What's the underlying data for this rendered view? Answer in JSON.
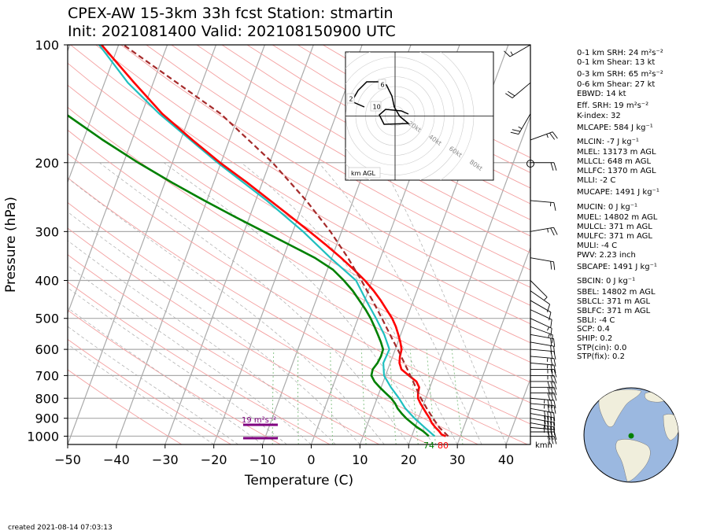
{
  "title": {
    "line1": "CPEX-AW 15-3km  33h fcst  Station: stmartin",
    "line2": "Init: 2021081400  Valid: 202108150900 UTC"
  },
  "axes": {
    "xlabel": "Temperature (C)",
    "ylabel": "Pressure (hPa)",
    "x_ticks": [
      "−50",
      "−40",
      "−30",
      "−20",
      "−10",
      "0",
      "10",
      "20",
      "30",
      "40"
    ],
    "y_ticks": [
      "100",
      "200",
      "300",
      "400",
      "500",
      "600",
      "700",
      "800",
      "900",
      "1000"
    ]
  },
  "footer": {
    "created": "created 2021-08-14 07:03:13"
  },
  "surface_labels": {
    "dewpoint": "74",
    "temperature": "80",
    "wind_units": "kmh"
  },
  "srh_label": "19 m²s⁻²",
  "hodograph": {
    "label": "km AGL",
    "height_labels": [
      "6",
      "2",
      "10"
    ],
    "ring_labels": [
      "20kt",
      "40kt",
      "60kt",
      "80kt"
    ]
  },
  "indices": [
    "0-1 km SRH: 24 m²s⁻²",
    "0-1 km Shear: 13 kt",
    "0-3 km SRH: 65 m²s⁻²",
    "0-6 km Shear: 27 kt",
    "EBWD: 14 kt",
    "Eff. SRH: 19 m²s⁻²",
    "K-index: 32",
    "MLCAPE: 584 J kg⁻¹",
    "MLCIN: -7 J kg⁻¹",
    "MLEL: 13173 m AGL",
    "MLLCL: 648 m AGL",
    "MLLFC: 1370 m AGL",
    "MLLI: -2 C",
    "MUCAPE: 1491 J kg⁻¹",
    "MUCIN: 0 J kg⁻¹",
    "MUEL: 14802 m AGL",
    "MULCL: 371 m AGL",
    "MULFC: 371 m AGL",
    "MULI: -4 C",
    "PWV: 2.23 inch",
    "SBCAPE: 1491 J kg⁻¹",
    "SBCIN: 0 J kg⁻¹",
    "SBEL: 14802 m AGL",
    "SBLCL: 371 m AGL",
    "SBLFC: 371 m AGL",
    "SBLI: -4 C",
    "SCP: 0.4",
    "SHIP: 0.2",
    "STP(cin): 0.0",
    "STP(fix): 0.2"
  ],
  "colors": {
    "temperature": "#ff0000",
    "dewpoint": "#008000",
    "wetbulb": "#1fbfbf",
    "parcel": "#a52a2a",
    "srh_bar": "#800080",
    "globe_ocean": "#9bb8e0",
    "globe_land": "#f0eedc",
    "station_marker": "#008000"
  },
  "chart_data": {
    "type": "line",
    "xlim": [
      -50,
      45
    ],
    "ylim_hpa": [
      1050,
      100
    ],
    "y_scale": "log",
    "skew": true,
    "series": [
      {
        "key": "temperature",
        "pressure": [
          1000,
          990,
          970,
          950,
          925,
          900,
          875,
          850,
          825,
          800,
          775,
          750,
          725,
          700,
          675,
          650,
          625,
          600,
          575,
          550,
          525,
          500,
          475,
          450,
          425,
          400,
          375,
          350,
          325,
          300,
          275,
          250,
          225,
          200,
          175,
          150,
          125,
          100
        ],
        "values": [
          27,
          26,
          25.2,
          24.2,
          23.1,
          22.3,
          21.3,
          20.3,
          19.3,
          18.4,
          18,
          17.8,
          16.8,
          14.8,
          12.8,
          11.9,
          11.5,
          11.3,
          10.5,
          9.5,
          8.4,
          7,
          5.2,
          3.3,
          1.1,
          -1.5,
          -4.6,
          -8.1,
          -12.1,
          -16.6,
          -21.5,
          -27,
          -33.1,
          -40.2,
          -47.6,
          -55.8,
          -63.9,
          -73.5
        ]
      },
      {
        "key": "dewpoint",
        "pressure": [
          1000,
          990,
          970,
          950,
          925,
          900,
          875,
          850,
          825,
          800,
          775,
          750,
          725,
          700,
          675,
          650,
          625,
          600,
          575,
          550,
          525,
          500,
          475,
          450,
          425,
          400,
          375,
          350,
          325,
          300,
          275,
          250,
          225,
          200,
          175,
          150,
          125,
          100
        ],
        "values": [
          23.5,
          23,
          21.9,
          20.5,
          19,
          17.5,
          16.2,
          15,
          14.1,
          12.9,
          11.3,
          9.7,
          8.2,
          7.1,
          6.9,
          7.4,
          7.6,
          7.5,
          6.5,
          5.3,
          4,
          2.6,
          0.9,
          -1.1,
          -3.2,
          -5.8,
          -8.9,
          -13.5,
          -19.5,
          -26,
          -33,
          -40.5,
          -48.5,
          -57,
          -66,
          -75.7,
          -84.6,
          -95
        ]
      },
      {
        "key": "wetbulb",
        "pressure": [
          1000,
          950,
          900,
          850,
          800,
          750,
          700,
          650,
          600,
          550,
          500,
          450,
          400,
          350,
          300,
          250,
          200,
          150,
          125,
          100
        ],
        "values": [
          24.7,
          22,
          19.2,
          16.6,
          14.5,
          12,
          9.7,
          8.6,
          8.8,
          6.6,
          3.7,
          0.3,
          -3.3,
          -10.3,
          -17.9,
          -27.7,
          -40.7,
          -56.4,
          -65.2,
          -74
        ]
      },
      {
        "key": "parcel",
        "pressure": [
          1000,
          950,
          900,
          850,
          800,
          750,
          700,
          650,
          600,
          550,
          500,
          450,
          400,
          350,
          300,
          250,
          200,
          150,
          100
        ],
        "values": [
          27.5,
          25,
          23,
          21,
          19,
          17.1,
          15.1,
          12.9,
          10.5,
          7.8,
          4.9,
          1.6,
          -2.2,
          -6.7,
          -12.3,
          -19.6,
          -29.4,
          -43.8,
          -69
        ]
      }
    ],
    "wind_profile": {
      "units": "kmh",
      "pressure": [
        1000,
        975,
        950,
        925,
        900,
        875,
        850,
        825,
        800,
        775,
        750,
        725,
        700,
        675,
        650,
        625,
        600,
        575,
        550,
        525,
        500,
        475,
        450,
        425,
        400,
        350,
        300,
        250,
        200,
        175,
        150,
        125,
        100
      ],
      "direction": [
        90,
        90,
        95,
        100,
        100,
        100,
        100,
        95,
        95,
        90,
        90,
        90,
        90,
        90,
        95,
        95,
        95,
        100,
        100,
        110,
        115,
        115,
        120,
        125,
        135,
        100,
        80,
        95,
        90,
        70,
        210,
        230,
        240
      ],
      "speed": [
        30,
        32,
        35,
        38,
        40,
        40,
        40,
        38,
        35,
        32,
        30,
        30,
        28,
        28,
        26,
        25,
        24,
        22,
        20,
        18,
        15,
        14,
        12,
        10,
        6,
        20,
        28,
        15,
        20,
        28,
        25,
        20,
        16
      ]
    },
    "srh_value": 19
  }
}
